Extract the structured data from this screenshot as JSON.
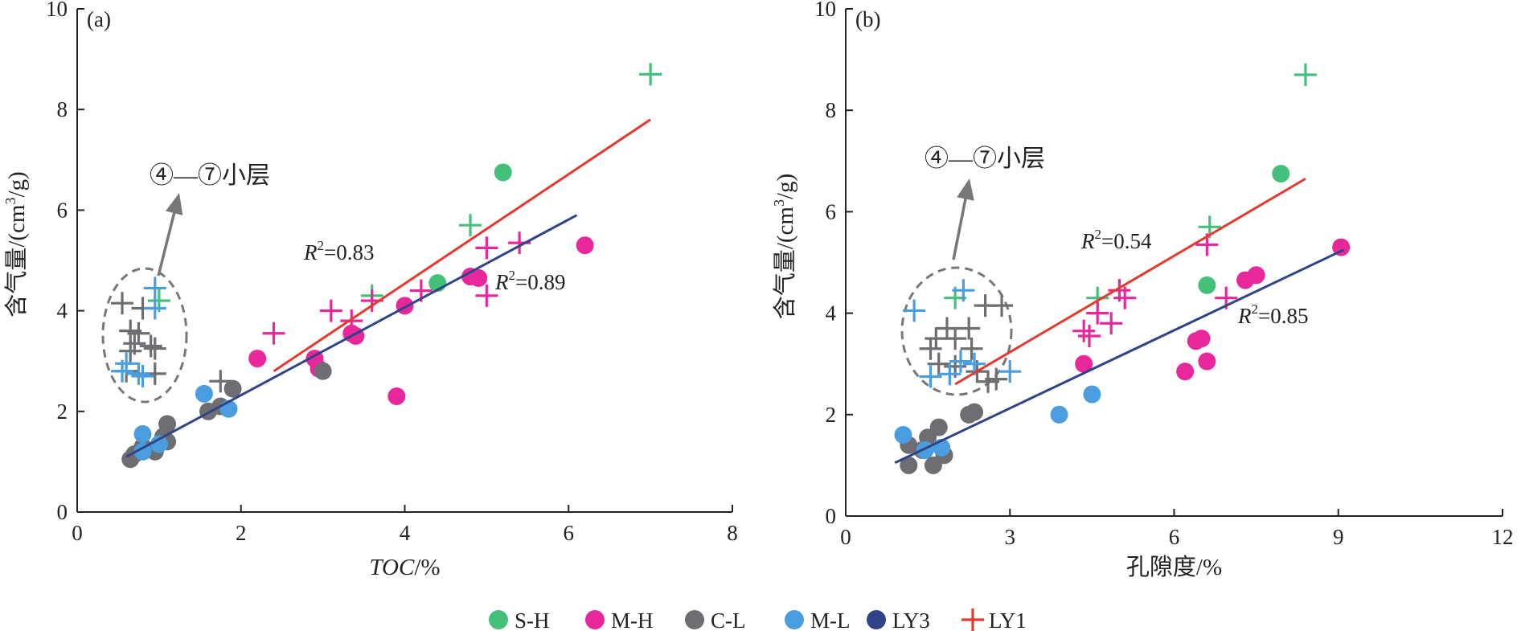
{
  "figure": {
    "legend": [
      {
        "key": "S-H",
        "label": "S-H",
        "marker": "circle",
        "color": "#45c07a"
      },
      {
        "key": "M-H",
        "label": "M-H",
        "marker": "circle",
        "color": "#e8289a"
      },
      {
        "key": "C-L",
        "label": "C-L",
        "marker": "circle",
        "color": "#6e6e72"
      },
      {
        "key": "M-L",
        "label": "M-L",
        "marker": "circle",
        "color": "#4a9ee0"
      },
      {
        "key": "LY3",
        "label": "LY3",
        "marker": "circle",
        "color": "#2f4486"
      },
      {
        "key": "LY1",
        "label": "LY1",
        "marker": "plus",
        "color": "#e23a2e"
      }
    ],
    "colors": {
      "S-H": "#45c07a",
      "M-H": "#e8289a",
      "C-L": "#6e6e72",
      "M-L": "#4a9ee0",
      "LY3": "#2f4486",
      "LY1": "#e23a2e",
      "axis": "#222222",
      "ellipse": "#777777"
    }
  },
  "chart_data": [
    {
      "type": "scatter",
      "panel_label": "(a)",
      "xlabel": "TOC/%",
      "ylabel": "含气量/(cm³/g)",
      "xlim": [
        0,
        8
      ],
      "ylim": [
        0,
        10
      ],
      "xticks": [
        0,
        2,
        4,
        6,
        8
      ],
      "yticks": [
        0,
        2,
        4,
        6,
        8,
        10
      ],
      "grid": false,
      "legend_position": "bottom",
      "callout": "④—⑦小层",
      "fits": [
        {
          "series": "LY1",
          "label": "R²=0.83",
          "r2": 0.83,
          "from": [
            2.4,
            2.8
          ],
          "to": [
            7.0,
            7.8
          ]
        },
        {
          "series": "LY3",
          "label": "R²=0.89",
          "r2": 0.89,
          "from": [
            0.6,
            1.1
          ],
          "to": [
            6.1,
            5.9
          ]
        }
      ],
      "series": [
        {
          "name": "S-H",
          "marker": "circle",
          "points": [
            [
              5.2,
              6.75
            ],
            [
              4.4,
              4.55
            ]
          ]
        },
        {
          "name": "S-H",
          "marker": "plus",
          "points": [
            [
              7.0,
              8.7
            ],
            [
              4.8,
              5.7
            ],
            [
              3.6,
              4.3
            ],
            [
              1.0,
              4.2
            ]
          ]
        },
        {
          "name": "M-H",
          "marker": "circle",
          "points": [
            [
              6.2,
              5.3
            ],
            [
              4.8,
              4.68
            ],
            [
              4.9,
              4.65
            ],
            [
              4.0,
              4.1
            ],
            [
              3.4,
              3.5
            ],
            [
              3.35,
              3.55
            ],
            [
              2.2,
              3.05
            ],
            [
              2.9,
              3.05
            ],
            [
              2.95,
              2.85
            ],
            [
              3.9,
              2.3
            ]
          ]
        },
        {
          "name": "M-H",
          "marker": "plus",
          "points": [
            [
              5.4,
              5.35
            ],
            [
              5.0,
              5.25
            ],
            [
              5.0,
              4.3
            ],
            [
              4.2,
              4.4
            ],
            [
              3.6,
              4.2
            ],
            [
              3.1,
              4.0
            ],
            [
              3.35,
              3.8
            ],
            [
              2.4,
              3.55
            ]
          ]
        },
        {
          "name": "C-L",
          "marker": "circle",
          "points": [
            [
              3.0,
              2.8
            ],
            [
              1.9,
              2.45
            ],
            [
              1.6,
              2.0
            ],
            [
              1.75,
              2.1
            ],
            [
              1.1,
              1.75
            ],
            [
              1.05,
              1.5
            ],
            [
              1.1,
              1.4
            ],
            [
              0.95,
              1.2
            ],
            [
              0.7,
              1.15
            ],
            [
              0.65,
              1.05
            ],
            [
              0.8,
              1.3
            ]
          ]
        },
        {
          "name": "C-L",
          "marker": "plus",
          "points": [
            [
              0.55,
              4.15
            ],
            [
              0.8,
              4.05
            ],
            [
              0.65,
              3.6
            ],
            [
              0.75,
              3.55
            ],
            [
              0.7,
              3.35
            ],
            [
              0.9,
              3.3
            ],
            [
              0.95,
              3.25
            ],
            [
              0.65,
              3.2
            ],
            [
              0.95,
              2.75
            ],
            [
              0.6,
              2.8
            ],
            [
              1.75,
              2.6
            ]
          ]
        },
        {
          "name": "M-L",
          "marker": "circle",
          "points": [
            [
              1.55,
              2.35
            ],
            [
              1.85,
              2.05
            ],
            [
              0.8,
              1.55
            ],
            [
              1.0,
              1.35
            ],
            [
              0.8,
              1.2
            ]
          ]
        },
        {
          "name": "M-L",
          "marker": "plus",
          "points": [
            [
              0.95,
              4.45
            ],
            [
              0.95,
              4.05
            ],
            [
              0.55,
              2.8
            ],
            [
              0.6,
              2.95
            ],
            [
              0.75,
              2.75
            ],
            [
              0.8,
              2.7
            ]
          ]
        }
      ]
    },
    {
      "type": "scatter",
      "panel_label": "(b)",
      "xlabel": "孔隙度/%",
      "ylabel": "含气量/(cm³/g)",
      "xlim": [
        0,
        12
      ],
      "ylim": [
        0,
        10
      ],
      "xticks": [
        0,
        3,
        6,
        9,
        12
      ],
      "yticks": [
        0,
        2,
        4,
        6,
        8,
        10
      ],
      "grid": false,
      "legend_position": "bottom",
      "callout": "④—⑦小层",
      "fits": [
        {
          "series": "LY1",
          "label": "R²=0.54",
          "r2": 0.54,
          "from": [
            2.0,
            2.6
          ],
          "to": [
            8.4,
            6.65
          ]
        },
        {
          "series": "LY3",
          "label": "R²=0.85",
          "r2": 0.85,
          "from": [
            0.9,
            1.05
          ],
          "to": [
            9.1,
            5.25
          ]
        }
      ],
      "series": [
        {
          "name": "S-H",
          "marker": "circle",
          "points": [
            [
              7.95,
              6.75
            ],
            [
              6.6,
              4.55
            ]
          ]
        },
        {
          "name": "S-H",
          "marker": "plus",
          "points": [
            [
              8.4,
              8.7
            ],
            [
              6.65,
              5.7
            ],
            [
              4.6,
              4.3
            ],
            [
              2.0,
              4.3
            ]
          ]
        },
        {
          "name": "M-H",
          "marker": "circle",
          "points": [
            [
              9.05,
              5.3
            ],
            [
              7.5,
              4.75
            ],
            [
              7.3,
              4.65
            ],
            [
              6.4,
              3.45
            ],
            [
              6.5,
              3.5
            ],
            [
              6.6,
              3.05
            ],
            [
              6.2,
              2.85
            ],
            [
              4.35,
              3.0
            ]
          ]
        },
        {
          "name": "M-H",
          "marker": "plus",
          "points": [
            [
              6.6,
              5.35
            ],
            [
              5.0,
              4.45
            ],
            [
              5.1,
              4.3
            ],
            [
              6.95,
              4.3
            ],
            [
              4.6,
              4.0
            ],
            [
              4.85,
              3.8
            ],
            [
              4.35,
              3.65
            ],
            [
              4.45,
              3.55
            ]
          ]
        },
        {
          "name": "C-L",
          "marker": "circle",
          "points": [
            [
              2.25,
              2.0
            ],
            [
              2.35,
              2.05
            ],
            [
              1.7,
              1.75
            ],
            [
              1.5,
              1.55
            ],
            [
              1.15,
              1.4
            ],
            [
              1.8,
              1.2
            ],
            [
              1.6,
              1.0
            ],
            [
              1.15,
              1.0
            ],
            [
              1.4,
              1.3
            ]
          ]
        },
        {
          "name": "C-L",
          "marker": "plus",
          "points": [
            [
              2.55,
              4.15
            ],
            [
              2.85,
              4.15
            ],
            [
              1.85,
              3.7
            ],
            [
              2.25,
              3.7
            ],
            [
              1.65,
              3.5
            ],
            [
              2.0,
              3.5
            ],
            [
              1.55,
              3.3
            ],
            [
              2.3,
              3.3
            ],
            [
              1.7,
              3.0
            ],
            [
              2.0,
              2.95
            ],
            [
              2.4,
              2.85
            ],
            [
              2.6,
              2.65
            ],
            [
              2.75,
              2.7
            ]
          ]
        },
        {
          "name": "M-L",
          "marker": "circle",
          "points": [
            [
              1.05,
              1.6
            ],
            [
              3.9,
              2.0
            ],
            [
              4.5,
              2.4
            ],
            [
              1.75,
              1.35
            ],
            [
              1.45,
              1.3
            ]
          ]
        },
        {
          "name": "M-L",
          "marker": "plus",
          "points": [
            [
              1.25,
              4.05
            ],
            [
              2.15,
              4.45
            ],
            [
              2.1,
              3.05
            ],
            [
              2.35,
              3.0
            ],
            [
              3.0,
              2.85
            ],
            [
              1.55,
              2.75
            ],
            [
              1.9,
              2.8
            ]
          ]
        }
      ]
    }
  ]
}
